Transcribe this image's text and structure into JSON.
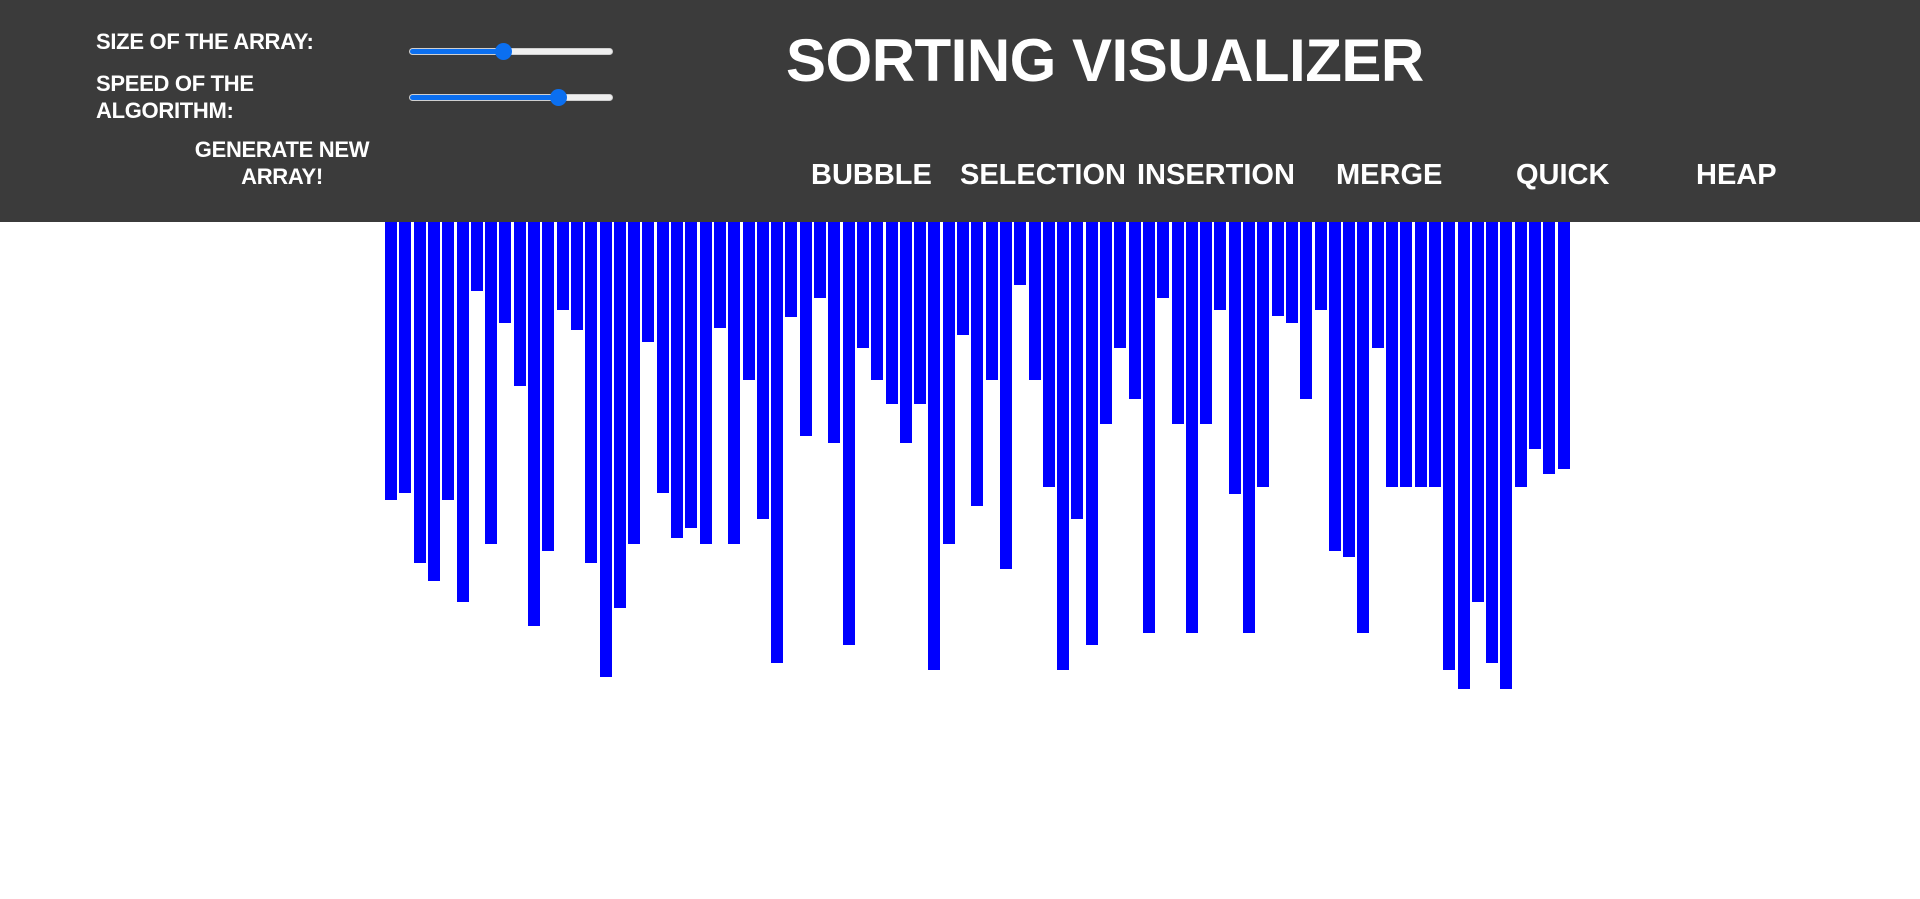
{
  "controls": {
    "size_label": "SIZE OF THE ARRAY:",
    "speed_label": "SPEED OF THE ALGORITHM:",
    "generate_label": "GENERATE NEW ARRAY!",
    "size_slider_value": 0.46,
    "speed_slider_value": 0.73
  },
  "header": {
    "title": "SORTING VISUALIZER"
  },
  "algorithms": {
    "bubble": "BUBBLE",
    "selection": "SELECTION",
    "insertion": "INSERTION",
    "merge": "MERGE",
    "quick": "QUICK",
    "heap": "HEAP"
  },
  "colors": {
    "header_bg": "#3b3b3b",
    "bar": "#0000ff",
    "slider_accent": "#0b6ff0"
  },
  "array": [
    278,
    271,
    341,
    359,
    278,
    380,
    69,
    322,
    101,
    164,
    404,
    329,
    88,
    108,
    341,
    455,
    386,
    322,
    120,
    271,
    316,
    306,
    322,
    106,
    322,
    158,
    297,
    441,
    95,
    214,
    76,
    221,
    423,
    126,
    158,
    182,
    221,
    182,
    448,
    322,
    113,
    284,
    158,
    347,
    63,
    158,
    265,
    448,
    297,
    423,
    202,
    126,
    177,
    411,
    76,
    202,
    411,
    202,
    88,
    272,
    411,
    265,
    94,
    101,
    177,
    88,
    329,
    335,
    411,
    126,
    265,
    265,
    265,
    265,
    448,
    467,
    380,
    441,
    467,
    265,
    227,
    252,
    247
  ]
}
